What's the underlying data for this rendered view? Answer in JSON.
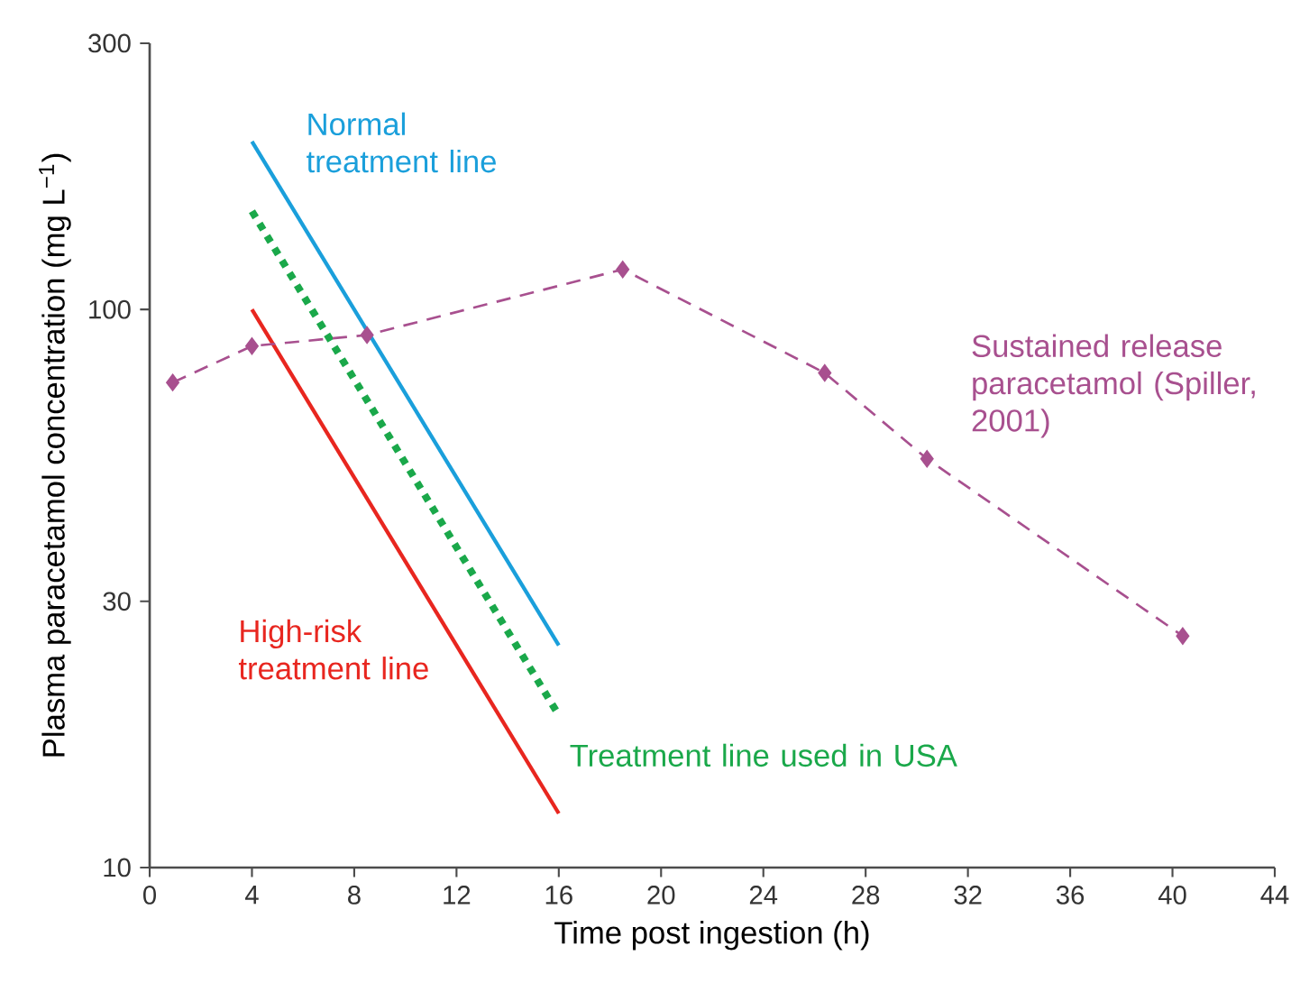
{
  "chart_data": {
    "type": "line",
    "xlabel": "Time post ingestion (h)",
    "ylabel": "Plasma paracetamol concentration (mg L$^{−1}$)",
    "log": "y",
    "xlim": [
      0,
      44
    ],
    "ylim": [
      10,
      300
    ],
    "xticks": [
      0,
      4,
      8,
      12,
      16,
      20,
      24,
      28,
      32,
      36,
      40,
      44
    ],
    "yticks": [
      10,
      30,
      100,
      300
    ],
    "series": [
      {
        "name": "Normal treatment line",
        "color": "#1a9fdb",
        "line_style": "solid",
        "marker": "none",
        "x": [
          4,
          16
        ],
        "values": [
          200,
          25
        ]
      },
      {
        "name": "Treatment line used in USA",
        "color": "#1aa84a",
        "line_style": "dotted",
        "marker": "none",
        "x": [
          4,
          16
        ],
        "values": [
          150,
          18.75
        ]
      },
      {
        "name": "High-risk treatment line",
        "color": "#e8261f",
        "line_style": "solid",
        "marker": "none",
        "x": [
          4,
          16
        ],
        "values": [
          100,
          12.5
        ]
      },
      {
        "name": "Sustained release paracetamol (Spiller, 2001)",
        "color": "#a8508f",
        "line_style": "dashed",
        "marker": "diamond",
        "x": [
          0.9,
          4.0,
          8.5,
          18.5,
          26.4,
          30.4,
          40.4
        ],
        "values": [
          74,
          86,
          90,
          118,
          77,
          54,
          26
        ]
      }
    ]
  }
}
